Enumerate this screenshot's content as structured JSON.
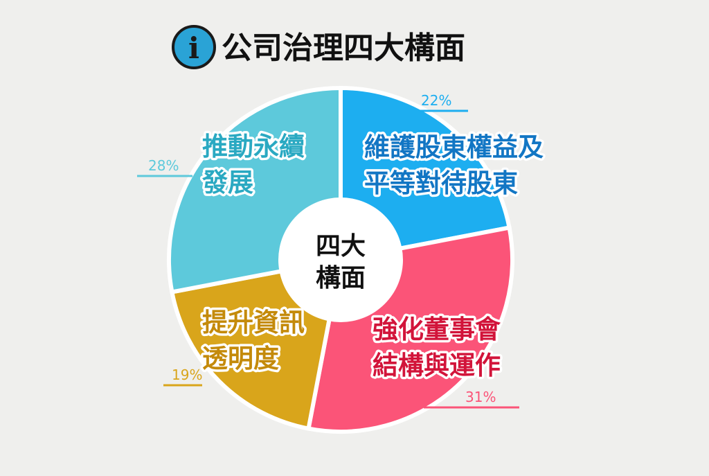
{
  "header": {
    "title": "公司治理四大構面",
    "icon": "info-icon",
    "icon_glyph": "i",
    "icon_color": "#2aa3d6"
  },
  "chart_data": {
    "type": "pie",
    "center_label": [
      "四大",
      "構面"
    ],
    "slices": [
      {
        "label_lines": [
          "維護股東權益及",
          "平等對待股東"
        ],
        "value": 22,
        "percent_label": "22%",
        "color": "#1daef0",
        "label_color": "#1276c4"
      },
      {
        "label_lines": [
          "強化董事會",
          "結構與運作"
        ],
        "value": 31,
        "percent_label": "31%",
        "color": "#fb5478",
        "label_color": "#d2143a"
      },
      {
        "label_lines": [
          "提升資訊",
          "透明度"
        ],
        "value": 19,
        "percent_label": "19%",
        "color": "#d9a51b",
        "label_color": "#c48a0a"
      },
      {
        "label_lines": [
          "推動永續",
          "發展"
        ],
        "value": 28,
        "percent_label": "28%",
        "color": "#5dc9db",
        "label_color": "#2aa9c2"
      }
    ]
  }
}
